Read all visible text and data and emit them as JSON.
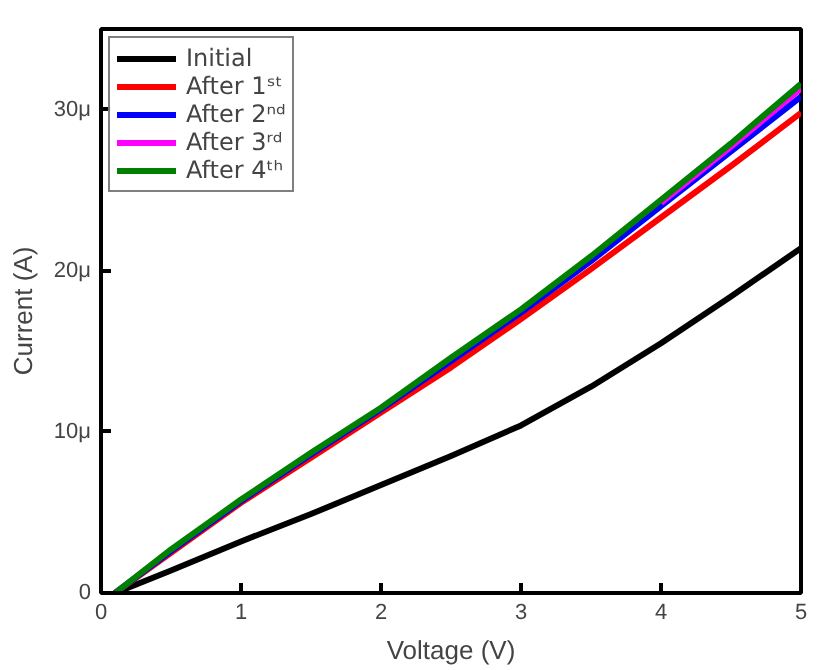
{
  "chart_data": {
    "type": "line",
    "xlabel": "Voltage (V)",
    "ylabel": "Current (A)",
    "x": [
      0.1,
      0.5,
      1,
      1.5,
      2,
      2.5,
      3,
      3.5,
      4,
      4.5,
      5
    ],
    "series": [
      {
        "name": "Initial",
        "color": "#000000",
        "values": [
          0,
          1.4,
          3.2,
          4.9,
          6.7,
          8.5,
          10.4,
          12.8,
          15.5,
          18.4,
          21.4
        ]
      },
      {
        "name": "After 1ˢᵗ",
        "color": "#ff0000",
        "values": [
          0,
          2.5,
          5.6,
          8.4,
          11.2,
          14.0,
          17.0,
          20.1,
          23.3,
          26.5,
          29.8
        ]
      },
      {
        "name": "After 2ⁿᵈ",
        "color": "#0000ff",
        "values": [
          0,
          2.6,
          5.7,
          8.6,
          11.4,
          14.4,
          17.4,
          20.6,
          24.0,
          27.4,
          30.8
        ]
      },
      {
        "name": "After 3ʳᵈ",
        "color": "#ff00ff",
        "values": [
          null,
          null,
          null,
          null,
          null,
          null,
          null,
          null,
          24.2,
          27.7,
          31.3
        ]
      },
      {
        "name": "After 4ᵗʰ",
        "color": "#008000",
        "values": [
          0,
          2.7,
          5.8,
          8.7,
          11.5,
          14.6,
          17.6,
          20.9,
          24.4,
          27.9,
          31.6
        ]
      }
    ],
    "xlim": [
      0,
      5
    ],
    "ylim": [
      0,
      35
    ],
    "xticks": [
      0,
      1,
      2,
      3,
      4,
      5
    ],
    "yticks": [
      0,
      {
        "value": 10,
        "label": "10μ"
      },
      {
        "value": 20,
        "label": "20μ"
      },
      {
        "value": 30,
        "label": "30μ"
      }
    ],
    "grid": false,
    "legend": "top left",
    "line_style": "solid",
    "marker": "none"
  }
}
